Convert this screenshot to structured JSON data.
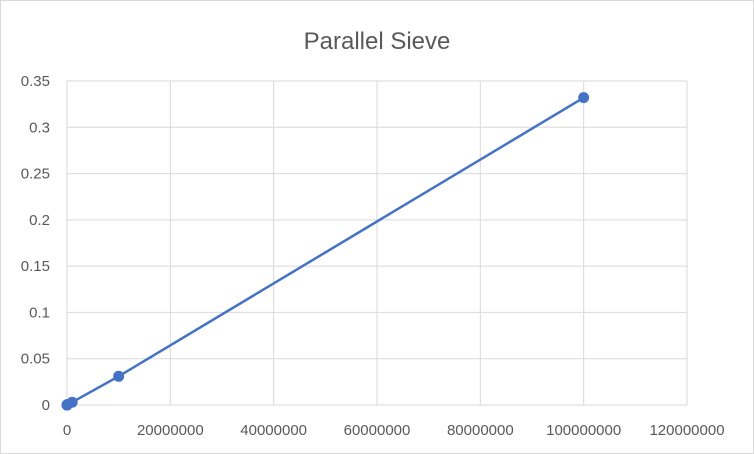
{
  "chart_data": {
    "type": "scatter",
    "title": "Parallel Sieve",
    "xlabel": "",
    "ylabel": "",
    "series": [
      {
        "color": "#4472C4",
        "x": [
          10,
          100,
          1000,
          10000,
          100000,
          1000000,
          10000000,
          100000000
        ],
        "y": [
          0,
          0,
          0,
          0,
          0.0005,
          0.003,
          0.031,
          0.332
        ]
      }
    ],
    "xlim": [
      0,
      120000000
    ],
    "ylim": [
      0,
      0.35
    ],
    "xticks": [
      0,
      20000000,
      40000000,
      60000000,
      80000000,
      100000000,
      120000000
    ],
    "xtick_labels": [
      "0",
      "20000000",
      "40000000",
      "60000000",
      "80000000",
      "100000000",
      "120000000"
    ],
    "yticks": [
      0,
      0.05,
      0.1,
      0.15,
      0.2,
      0.25,
      0.3,
      0.35
    ],
    "ytick_labels": [
      "0",
      "0.05",
      "0.1",
      "0.15",
      "0.2",
      "0.25",
      "0.3",
      "0.35"
    ],
    "grid": true,
    "legend": "none",
    "line_style": "straight lines with markers"
  }
}
